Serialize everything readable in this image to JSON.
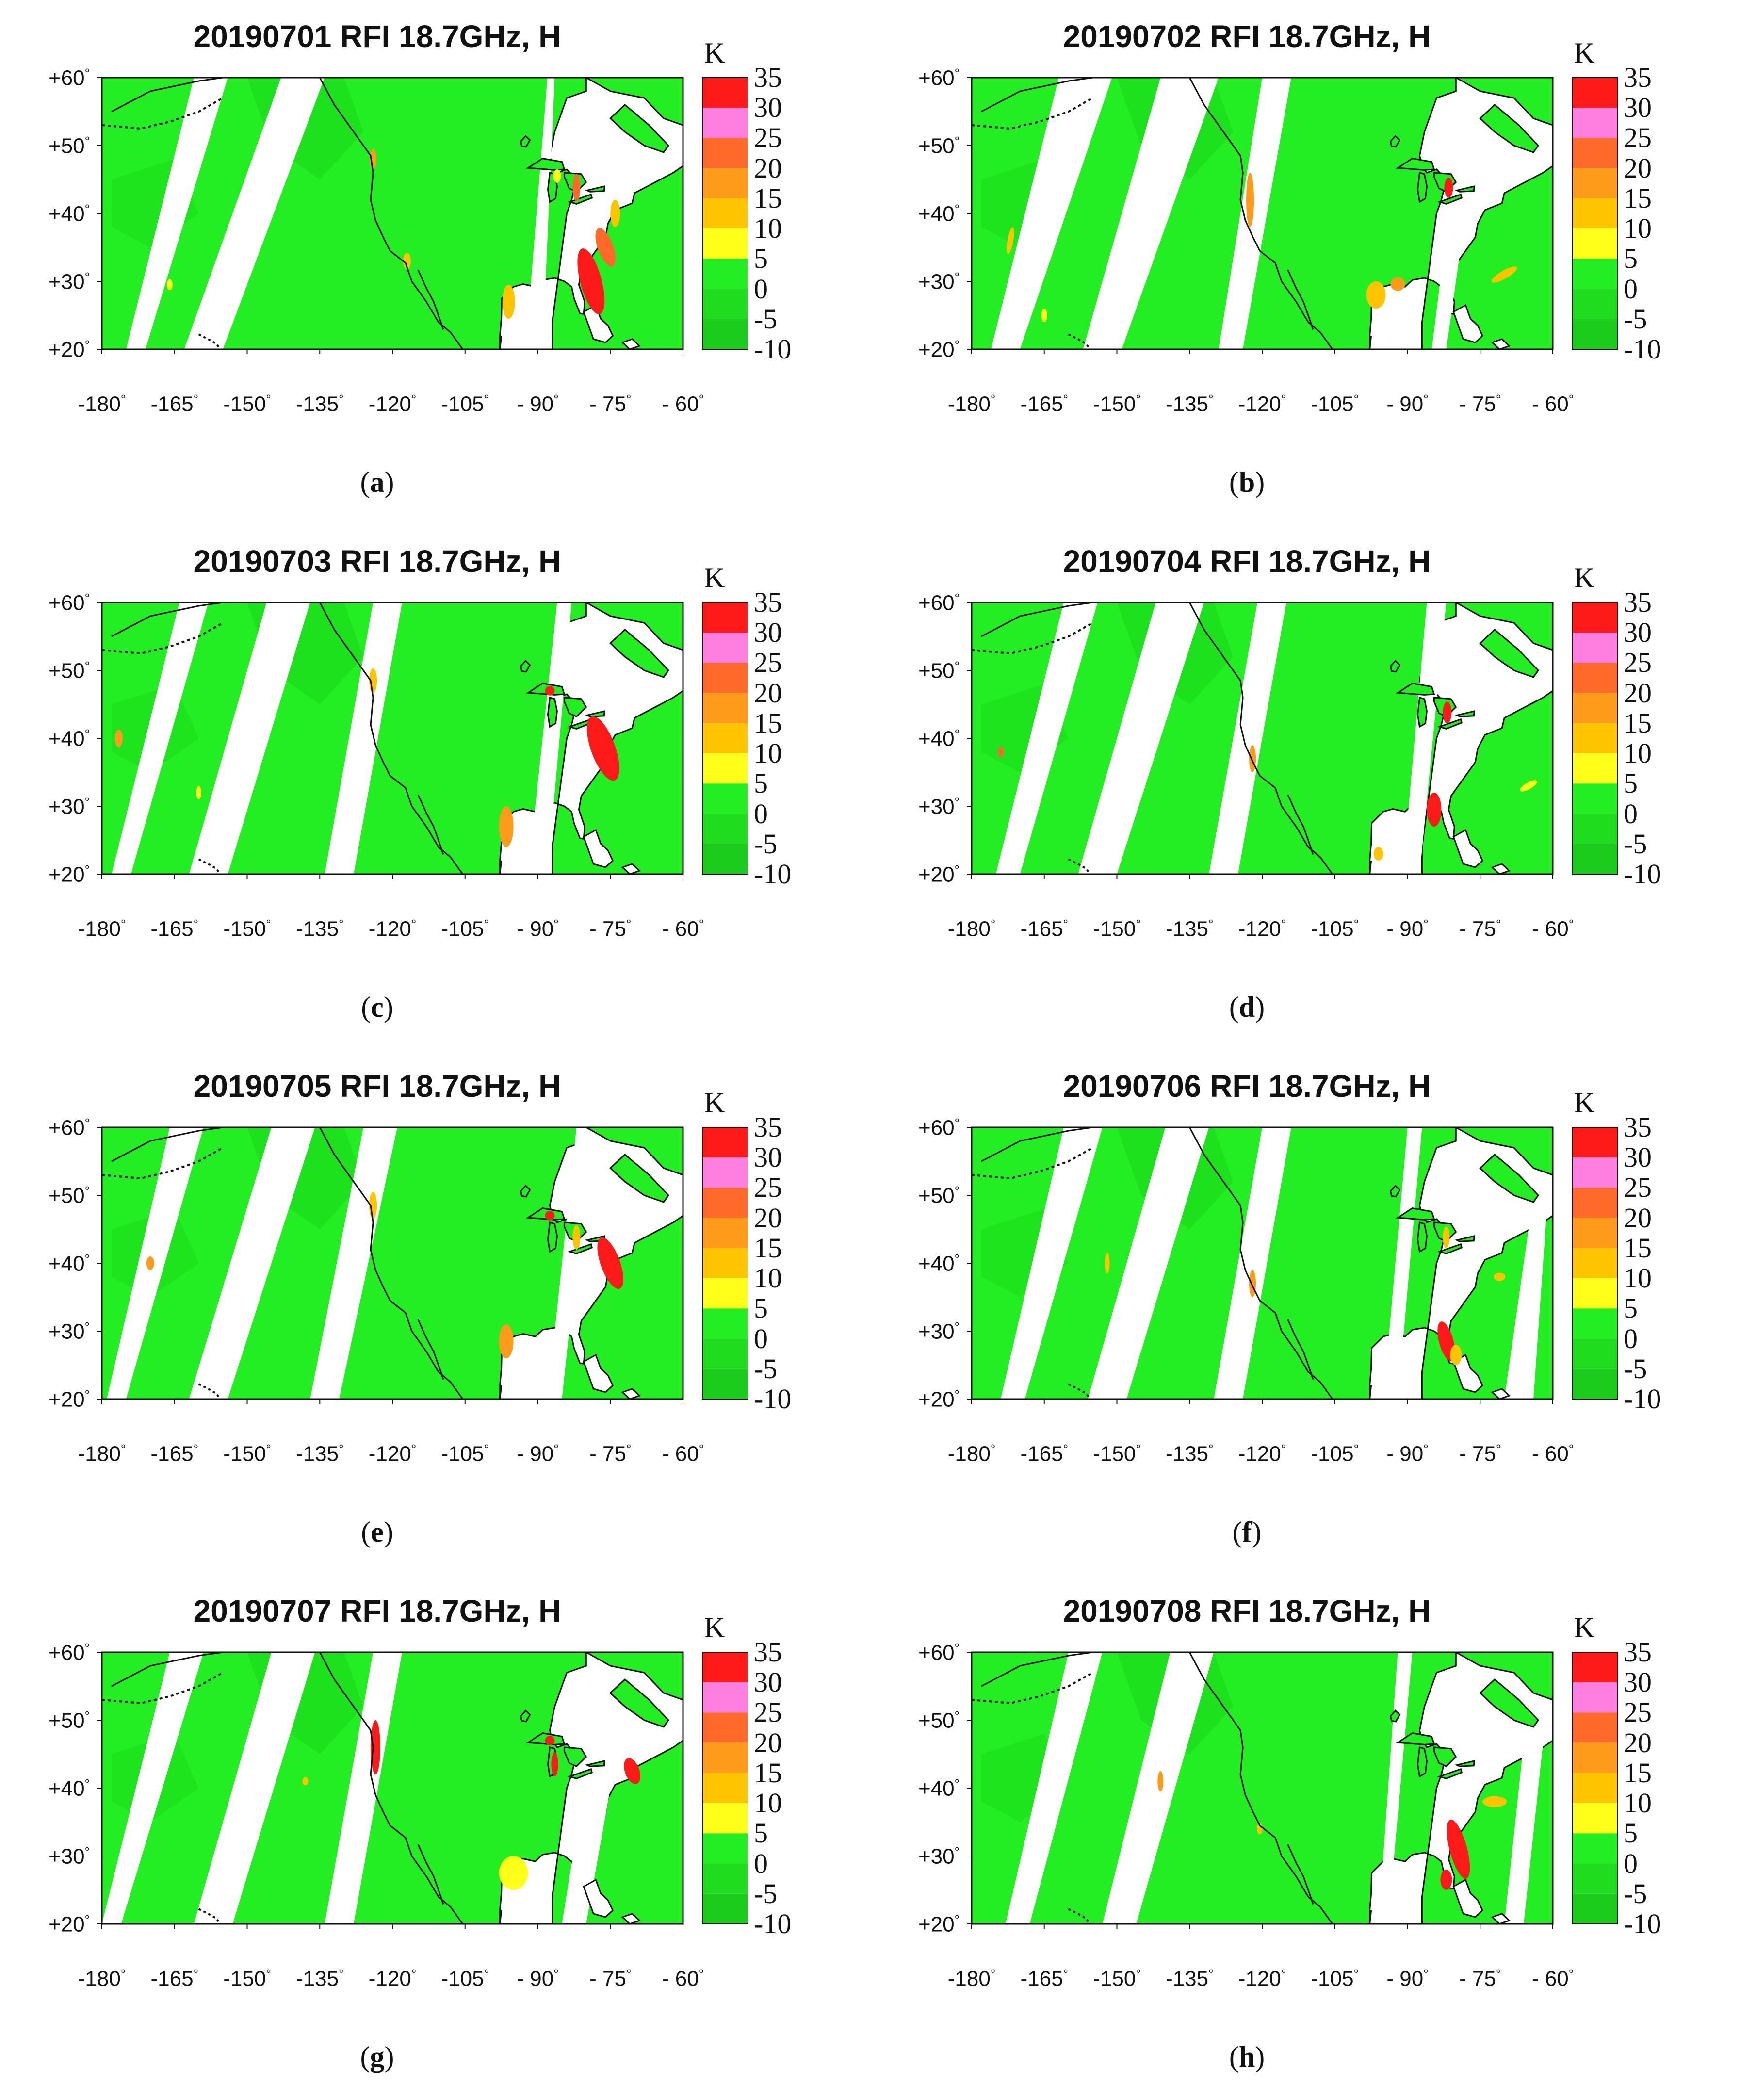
{
  "figure": {
    "panels": [
      {
        "title": "20190701 RFI 18.7GHz, H",
        "label_open": "(",
        "label_letter": "a",
        "label_close": ")"
      },
      {
        "title": "20190702 RFI 18.7GHz, H",
        "label_open": "(",
        "label_letter": "b",
        "label_close": ")"
      },
      {
        "title": "20190703 RFI 18.7GHz, H",
        "label_open": "(",
        "label_letter": "c",
        "label_close": ")"
      },
      {
        "title": "20190704 RFI 18.7GHz, H",
        "label_open": "(",
        "label_letter": "d",
        "label_close": ")"
      },
      {
        "title": "20190705 RFI 18.7GHz, H",
        "label_open": "(",
        "label_letter": "e",
        "label_close": ")"
      },
      {
        "title": "20190706 RFI 18.7GHz, H",
        "label_open": "(",
        "label_letter": "f",
        "label_close": ")"
      },
      {
        "title": "20190707 RFI 18.7GHz, H",
        "label_open": "(",
        "label_letter": "g",
        "label_close": ")"
      },
      {
        "title": "20190708 RFI 18.7GHz, H",
        "label_open": "(",
        "label_letter": "h",
        "label_close": ")"
      }
    ],
    "lat_labels": [
      "+60",
      "+50",
      "+40",
      "+30",
      "+20"
    ],
    "lat_values": [
      60,
      50,
      40,
      30,
      20
    ],
    "lon_labels": [
      "-180",
      "-165",
      "-150",
      "-135",
      "-120",
      "-105",
      "- 90",
      "- 75",
      "- 60"
    ],
    "lon_values": [
      -180,
      -165,
      -150,
      -135,
      -120,
      -105,
      -90,
      -75,
      -60
    ],
    "degree_symbol": "°",
    "map_extent": {
      "lon_min": -180,
      "lon_max": -60,
      "lat_min": 20,
      "lat_max": 60
    },
    "colorbar": {
      "unit": "K",
      "tick_labels": [
        "35",
        "30",
        "25",
        "20",
        "15",
        "10",
        "5",
        "0",
        "-5",
        "-10"
      ],
      "tick_values": [
        35,
        30,
        25,
        20,
        15,
        10,
        5,
        0,
        -5,
        -10
      ],
      "range": [
        -10,
        35
      ],
      "bands": [
        {
          "from": 30,
          "to": 35,
          "color": "#ff1a1a"
        },
        {
          "from": 25,
          "to": 30,
          "color": "#ff7fe0"
        },
        {
          "from": 20,
          "to": 25,
          "color": "#ff6a2a"
        },
        {
          "from": 15,
          "to": 20,
          "color": "#ff9b1a"
        },
        {
          "from": 10,
          "to": 15,
          "color": "#ffc400"
        },
        {
          "from": 5,
          "to": 10,
          "color": "#ffff1a"
        },
        {
          "from": 0,
          "to": 5,
          "color": "#22ee22"
        },
        {
          "from": -5,
          "to": 0,
          "color": "#1fdc1f"
        },
        {
          "from": -10,
          "to": -5,
          "color": "#1bcc1b"
        }
      ]
    },
    "colors": {
      "land": "#22ee22",
      "land_dark": "#18d418",
      "no_data": "#ffffff",
      "coast": "#111111"
    }
  }
}
